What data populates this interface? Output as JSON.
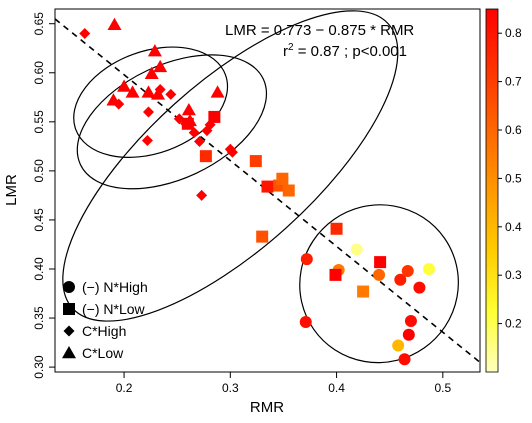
{
  "chart_data": {
    "type": "scatter",
    "xlabel": "RMR",
    "ylabel": "LMR",
    "xlim": [
      0.135,
      0.535
    ],
    "ylim": [
      0.295,
      0.665
    ],
    "x_ticks": [
      {
        "value": 0.2,
        "label": "0.2"
      },
      {
        "value": 0.3,
        "label": "0.3"
      },
      {
        "value": 0.4,
        "label": "0.4"
      },
      {
        "value": 0.5,
        "label": "0.5"
      }
    ],
    "y_ticks": [
      {
        "value": 0.3,
        "label": "0.30"
      },
      {
        "value": 0.35,
        "label": "0.35"
      },
      {
        "value": 0.4,
        "label": "0.40"
      },
      {
        "value": 0.45,
        "label": "0.45"
      },
      {
        "value": 0.5,
        "label": "0.50"
      },
      {
        "value": 0.55,
        "label": "0.55"
      },
      {
        "value": 0.6,
        "label": "0.60"
      },
      {
        "value": 0.65,
        "label": "0.65"
      }
    ],
    "grid": false,
    "annotations": {
      "equation": "LMR =  0.773 − 0.875 * RMR",
      "stats_r2_prefix": "r",
      "stats_r2_sup": "2",
      "stats_rest": " =  0.87 ;  p<0.001"
    },
    "fit_line": {
      "intercept": 0.773,
      "slope": -0.875,
      "style": "dashed"
    },
    "colorbar": {
      "range": [
        0.1,
        0.85
      ],
      "colors": [
        "#ffffc0",
        "#ffff33",
        "#ffcc00",
        "#ff9900",
        "#ff6600",
        "#ff3300",
        "#ff0000"
      ],
      "ticks": [
        {
          "value": 0.2,
          "label": "0.2"
        },
        {
          "value": 0.3,
          "label": "0.3"
        },
        {
          "value": 0.4,
          "label": "0.4"
        },
        {
          "value": 0.5,
          "label": "0.5"
        },
        {
          "value": 0.6,
          "label": "0.6"
        },
        {
          "value": 0.7,
          "label": "0.7"
        },
        {
          "value": 0.8,
          "label": "0.8"
        }
      ]
    },
    "legend": {
      "position": "bottom-left",
      "entries": [
        {
          "shape": "circle",
          "label": "(−) N*High"
        },
        {
          "shape": "square",
          "label": "(−) N*Low"
        },
        {
          "shape": "diamond",
          "label": "C*High"
        },
        {
          "shape": "triangle",
          "label": "C*Low"
        }
      ]
    },
    "ellipses": [
      {
        "group": "C*Low",
        "cx": 0.225,
        "cy": 0.57,
        "rx": 0.075,
        "ry": 0.052,
        "angle_deg": -20
      },
      {
        "group": "C*High",
        "cx": 0.245,
        "cy": 0.55,
        "rx": 0.095,
        "ry": 0.058,
        "angle_deg": -25
      },
      {
        "group": "overall",
        "cx": 0.3,
        "cy": 0.505,
        "rx": 0.2,
        "ry": 0.085,
        "angle_deg": -42
      },
      {
        "group": "(−) N*High",
        "cx": 0.44,
        "cy": 0.385,
        "rx": 0.075,
        "ry": 0.08,
        "angle_deg": -35
      }
    ],
    "series": [
      {
        "name": "(−) N*High",
        "shape": "circle",
        "points": [
          {
            "x": 0.371,
            "y": 0.346,
            "c": 0.82
          },
          {
            "x": 0.372,
            "y": 0.41,
            "c": 0.78
          },
          {
            "x": 0.402,
            "y": 0.399,
            "c": 0.55
          },
          {
            "x": 0.419,
            "y": 0.42,
            "c": 0.15
          },
          {
            "x": 0.44,
            "y": 0.394,
            "c": 0.6
          },
          {
            "x": 0.46,
            "y": 0.389,
            "c": 0.78
          },
          {
            "x": 0.467,
            "y": 0.398,
            "c": 0.72
          },
          {
            "x": 0.478,
            "y": 0.381,
            "c": 0.82
          },
          {
            "x": 0.47,
            "y": 0.347,
            "c": 0.82
          },
          {
            "x": 0.468,
            "y": 0.333,
            "c": 0.85
          },
          {
            "x": 0.458,
            "y": 0.322,
            "c": 0.4
          },
          {
            "x": 0.464,
            "y": 0.308,
            "c": 0.82
          },
          {
            "x": 0.487,
            "y": 0.4,
            "c": 0.22
          }
        ]
      },
      {
        "name": "(−) N*Low",
        "shape": "square",
        "points": [
          {
            "x": 0.324,
            "y": 0.51,
            "c": 0.7
          },
          {
            "x": 0.335,
            "y": 0.484,
            "c": 0.8
          },
          {
            "x": 0.346,
            "y": 0.485,
            "c": 0.65
          },
          {
            "x": 0.349,
            "y": 0.492,
            "c": 0.6
          },
          {
            "x": 0.355,
            "y": 0.48,
            "c": 0.6
          },
          {
            "x": 0.33,
            "y": 0.433,
            "c": 0.65
          },
          {
            "x": 0.4,
            "y": 0.441,
            "c": 0.75
          },
          {
            "x": 0.399,
            "y": 0.394,
            "c": 0.85
          },
          {
            "x": 0.441,
            "y": 0.407,
            "c": 0.85
          },
          {
            "x": 0.425,
            "y": 0.377,
            "c": 0.55
          },
          {
            "x": 0.277,
            "y": 0.515,
            "c": 0.75
          },
          {
            "x": 0.285,
            "y": 0.555,
            "c": 0.85
          },
          {
            "x": 0.26,
            "y": 0.548,
            "c": 0.85
          }
        ]
      },
      {
        "name": "C*High",
        "shape": "diamond",
        "points": [
          {
            "x": 0.163,
            "y": 0.64,
            "c": 0.85
          },
          {
            "x": 0.195,
            "y": 0.568,
            "c": 0.85
          },
          {
            "x": 0.223,
            "y": 0.56,
            "c": 0.85
          },
          {
            "x": 0.222,
            "y": 0.531,
            "c": 0.85
          },
          {
            "x": 0.244,
            "y": 0.578,
            "c": 0.85
          },
          {
            "x": 0.252,
            "y": 0.553,
            "c": 0.85
          },
          {
            "x": 0.258,
            "y": 0.548,
            "c": 0.85
          },
          {
            "x": 0.266,
            "y": 0.539,
            "c": 0.85
          },
          {
            "x": 0.271,
            "y": 0.53,
            "c": 0.85
          },
          {
            "x": 0.278,
            "y": 0.541,
            "c": 0.85
          },
          {
            "x": 0.281,
            "y": 0.547,
            "c": 0.85
          },
          {
            "x": 0.3,
            "y": 0.522,
            "c": 0.85
          },
          {
            "x": 0.302,
            "y": 0.519,
            "c": 0.85
          },
          {
            "x": 0.273,
            "y": 0.475,
            "c": 0.85
          },
          {
            "x": 0.234,
            "y": 0.583,
            "c": 0.85
          }
        ]
      },
      {
        "name": "C*Low",
        "shape": "triangle",
        "points": [
          {
            "x": 0.191,
            "y": 0.649,
            "c": 0.85
          },
          {
            "x": 0.19,
            "y": 0.572,
            "c": 0.85
          },
          {
            "x": 0.2,
            "y": 0.586,
            "c": 0.85
          },
          {
            "x": 0.208,
            "y": 0.58,
            "c": 0.85
          },
          {
            "x": 0.223,
            "y": 0.58,
            "c": 0.85
          },
          {
            "x": 0.226,
            "y": 0.599,
            "c": 0.85
          },
          {
            "x": 0.229,
            "y": 0.622,
            "c": 0.85
          },
          {
            "x": 0.234,
            "y": 0.606,
            "c": 0.85
          },
          {
            "x": 0.232,
            "y": 0.578,
            "c": 0.85
          },
          {
            "x": 0.262,
            "y": 0.551,
            "c": 0.85
          },
          {
            "x": 0.261,
            "y": 0.562,
            "c": 0.85
          },
          {
            "x": 0.288,
            "y": 0.58,
            "c": 0.85
          }
        ]
      }
    ]
  }
}
